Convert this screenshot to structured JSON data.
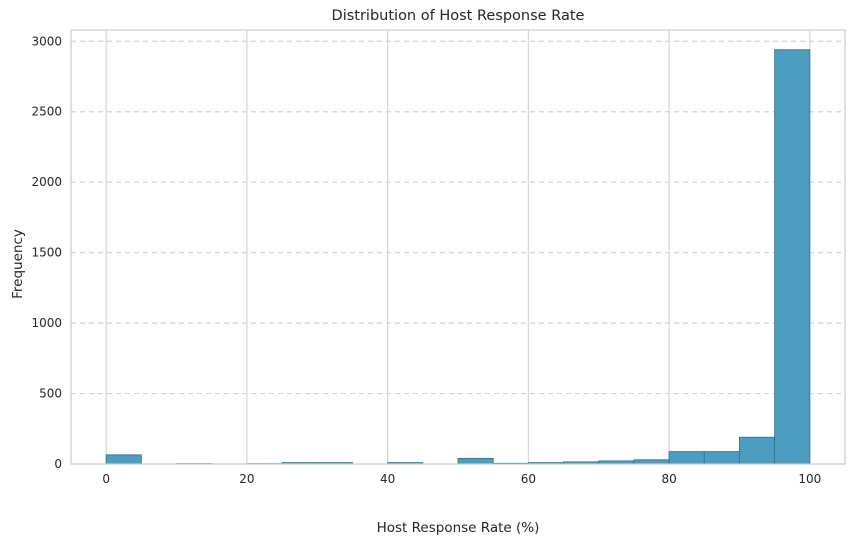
{
  "chart_data": {
    "type": "bar",
    "title": "Distribution of Host Response Rate",
    "xlabel": "Host Response Rate (%)",
    "ylabel": "Frequency",
    "xlim": [
      -5,
      105
    ],
    "ylim": [
      0,
      3080
    ],
    "x_ticks": [
      0,
      20,
      40,
      60,
      80,
      100
    ],
    "x_tick_labels": [
      "0",
      "20",
      "40",
      "60",
      "80",
      "100"
    ],
    "y_ticks": [
      0,
      500,
      1000,
      1500,
      2000,
      2500,
      3000
    ],
    "y_tick_labels": [
      "0",
      "500",
      "1000",
      "1500",
      "2000",
      "2500",
      "3000"
    ],
    "grid": {
      "x": "solid",
      "y": "dashed"
    },
    "bin_width": 5,
    "bins": [
      {
        "x0": 0,
        "x1": 5,
        "count": 65
      },
      {
        "x0": 5,
        "x1": 10,
        "count": 0
      },
      {
        "x0": 10,
        "x1": 15,
        "count": 3
      },
      {
        "x0": 15,
        "x1": 20,
        "count": 0
      },
      {
        "x0": 20,
        "x1": 25,
        "count": 3
      },
      {
        "x0": 25,
        "x1": 30,
        "count": 10
      },
      {
        "x0": 30,
        "x1": 35,
        "count": 10
      },
      {
        "x0": 35,
        "x1": 40,
        "count": 0
      },
      {
        "x0": 40,
        "x1": 45,
        "count": 10
      },
      {
        "x0": 45,
        "x1": 50,
        "count": 0
      },
      {
        "x0": 50,
        "x1": 55,
        "count": 40
      },
      {
        "x0": 55,
        "x1": 60,
        "count": 5
      },
      {
        "x0": 60,
        "x1": 65,
        "count": 10
      },
      {
        "x0": 65,
        "x1": 70,
        "count": 15
      },
      {
        "x0": 70,
        "x1": 75,
        "count": 22
      },
      {
        "x0": 75,
        "x1": 80,
        "count": 30
      },
      {
        "x0": 80,
        "x1": 85,
        "count": 88
      },
      {
        "x0": 85,
        "x1": 90,
        "count": 88
      },
      {
        "x0": 90,
        "x1": 95,
        "count": 190
      },
      {
        "x0": 95,
        "x1": 100,
        "count": 2940
      }
    ],
    "colors": {
      "bar": "#4c9dbf",
      "bar_edge": "#2e6f8c",
      "grid": "#d4d4d4",
      "frame": "#cccccc"
    }
  }
}
